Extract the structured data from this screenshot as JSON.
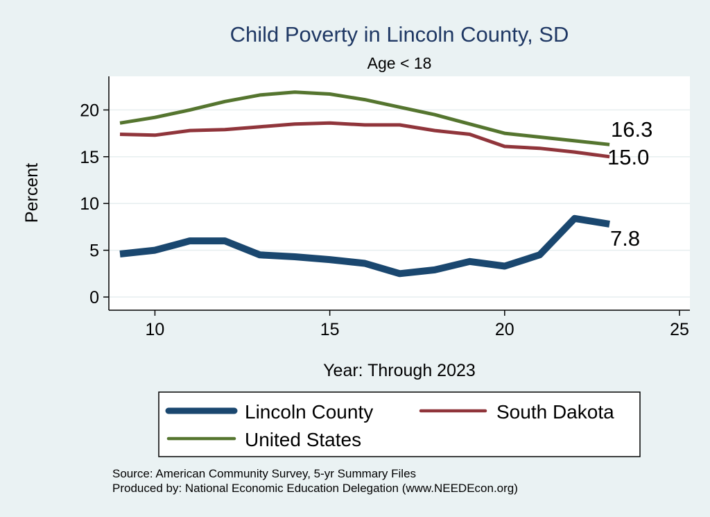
{
  "chart_data": {
    "type": "line",
    "title": "Child Poverty in Lincoln County, SD",
    "subtitle": "Age < 18",
    "xlabel": "Year: Through 2023",
    "ylabel": "Percent",
    "xlim": [
      9,
      25
    ],
    "ylim": [
      0,
      23
    ],
    "xticks": [
      "10",
      "15",
      "20",
      "25"
    ],
    "yticks": [
      "0",
      "5",
      "10",
      "15",
      "20"
    ],
    "x": [
      9,
      10,
      11,
      12,
      13,
      14,
      15,
      16,
      17,
      18,
      19,
      20,
      21,
      22,
      23
    ],
    "series": [
      {
        "name": "Lincoln County",
        "color": "#1a476f",
        "values": [
          4.6,
          5.0,
          6.0,
          6.0,
          4.5,
          4.3,
          4.0,
          3.6,
          2.5,
          2.9,
          3.8,
          3.3,
          4.5,
          8.4,
          7.8
        ],
        "end_label": "7.8"
      },
      {
        "name": "South Dakota",
        "color": "#90353b",
        "values": [
          17.4,
          17.3,
          17.8,
          17.9,
          18.2,
          18.5,
          18.6,
          18.4,
          18.4,
          17.8,
          17.4,
          16.1,
          15.9,
          15.5,
          15.0
        ],
        "end_label": "15.0"
      },
      {
        "name": "United States",
        "color": "#55752f",
        "values": [
          18.6,
          19.2,
          20.0,
          20.9,
          21.6,
          21.9,
          21.7,
          21.1,
          20.3,
          19.5,
          18.5,
          17.5,
          17.1,
          16.7,
          16.3
        ],
        "end_label": "16.3"
      }
    ],
    "legend_position": "bottom",
    "notes": [
      "Source: American Community Survey, 5-yr Summary Files",
      "Produced by: National Economic Education Delegation (www.NEEDEcon.org)"
    ]
  }
}
